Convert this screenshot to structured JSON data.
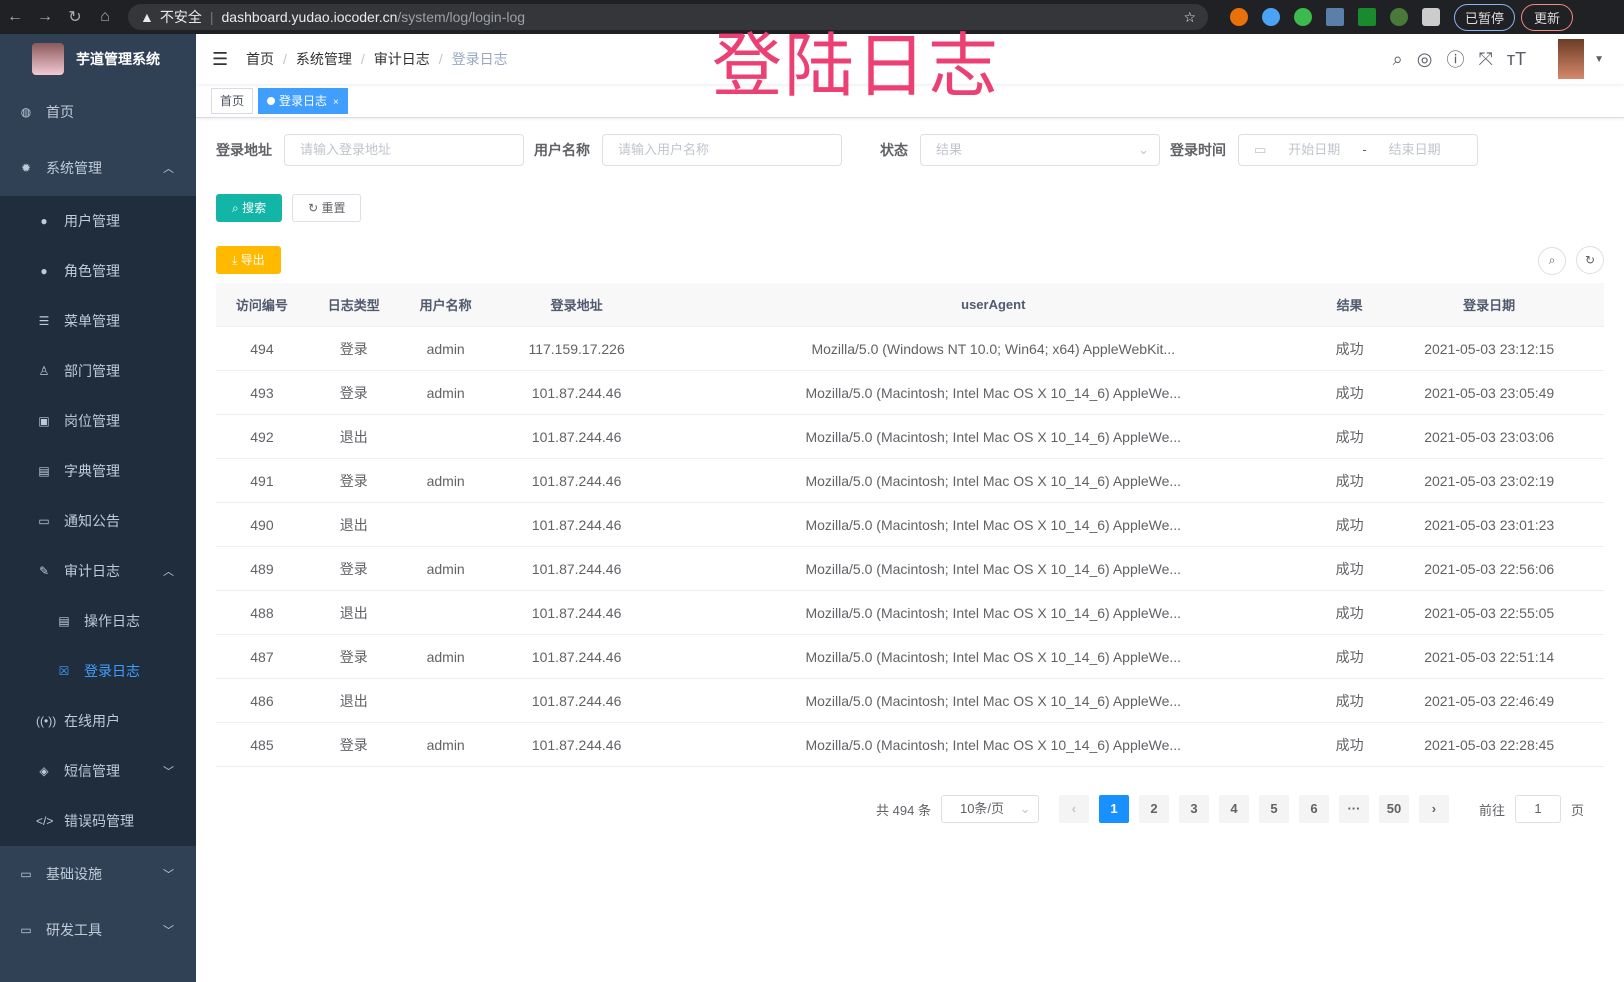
{
  "browser": {
    "security": "不安全",
    "url_host": "dashboard.yudao.iocoder.cn",
    "url_path": "/system/log/login-log",
    "paused": "已暂停",
    "update": "更新"
  },
  "overlay_title": "登陆日志",
  "sidebar": {
    "title": "芋道管理系统",
    "items": [
      {
        "label": "首页",
        "icon": "dashboard-icon"
      },
      {
        "label": "系统管理",
        "icon": "gear-icon",
        "expanded": true,
        "children": [
          {
            "label": "用户管理",
            "icon": "user-icon"
          },
          {
            "label": "角色管理",
            "icon": "peoples-icon"
          },
          {
            "label": "菜单管理",
            "icon": "tree-table-icon"
          },
          {
            "label": "部门管理",
            "icon": "tree-icon"
          },
          {
            "label": "岗位管理",
            "icon": "post-icon"
          },
          {
            "label": "字典管理",
            "icon": "dict-icon"
          },
          {
            "label": "通知公告",
            "icon": "message-icon"
          },
          {
            "label": "审计日志",
            "icon": "log-icon",
            "expanded": true,
            "children": [
              {
                "label": "操作日志",
                "icon": "form-icon"
              },
              {
                "label": "登录日志",
                "icon": "logininfor-icon",
                "active": true
              }
            ]
          },
          {
            "label": "在线用户",
            "icon": "online-icon"
          },
          {
            "label": "短信管理",
            "icon": "validCode-icon"
          },
          {
            "label": "错误码管理",
            "icon": "code-icon"
          }
        ]
      },
      {
        "label": "基础设施",
        "icon": "monitor-icon"
      },
      {
        "label": "研发工具",
        "icon": "tool-icon"
      }
    ]
  },
  "breadcrumb": [
    "首页",
    "系统管理",
    "审计日志",
    "登录日志"
  ],
  "tags": [
    {
      "label": "首页"
    },
    {
      "label": "登录日志",
      "active": true
    }
  ],
  "filters": {
    "address_label": "登录地址",
    "address_placeholder": "请输入登录地址",
    "username_label": "用户名称",
    "username_placeholder": "请输入用户名称",
    "status_label": "状态",
    "status_placeholder": "结果",
    "time_label": "登录时间",
    "start_placeholder": "开始日期",
    "range_sep": "-",
    "end_placeholder": "结束日期"
  },
  "buttons": {
    "search": "搜索",
    "reset": "重置",
    "export": "导出"
  },
  "table": {
    "columns": [
      "访问编号",
      "日志类型",
      "用户名称",
      "登录地址",
      "userAgent",
      "结果",
      "登录日期"
    ],
    "rows": [
      [
        "494",
        "登录",
        "admin",
        "117.159.17.226",
        "Mozilla/5.0 (Windows NT 10.0; Win64; x64) AppleWebKit...",
        "成功",
        "2021-05-03 23:12:15"
      ],
      [
        "493",
        "登录",
        "admin",
        "101.87.244.46",
        "Mozilla/5.0 (Macintosh; Intel Mac OS X 10_14_6) AppleWe...",
        "成功",
        "2021-05-03 23:05:49"
      ],
      [
        "492",
        "退出",
        "",
        "101.87.244.46",
        "Mozilla/5.0 (Macintosh; Intel Mac OS X 10_14_6) AppleWe...",
        "成功",
        "2021-05-03 23:03:06"
      ],
      [
        "491",
        "登录",
        "admin",
        "101.87.244.46",
        "Mozilla/5.0 (Macintosh; Intel Mac OS X 10_14_6) AppleWe...",
        "成功",
        "2021-05-03 23:02:19"
      ],
      [
        "490",
        "退出",
        "",
        "101.87.244.46",
        "Mozilla/5.0 (Macintosh; Intel Mac OS X 10_14_6) AppleWe...",
        "成功",
        "2021-05-03 23:01:23"
      ],
      [
        "489",
        "登录",
        "admin",
        "101.87.244.46",
        "Mozilla/5.0 (Macintosh; Intel Mac OS X 10_14_6) AppleWe...",
        "成功",
        "2021-05-03 22:56:06"
      ],
      [
        "488",
        "退出",
        "",
        "101.87.244.46",
        "Mozilla/5.0 (Macintosh; Intel Mac OS X 10_14_6) AppleWe...",
        "成功",
        "2021-05-03 22:55:05"
      ],
      [
        "487",
        "登录",
        "admin",
        "101.87.244.46",
        "Mozilla/5.0 (Macintosh; Intel Mac OS X 10_14_6) AppleWe...",
        "成功",
        "2021-05-03 22:51:14"
      ],
      [
        "486",
        "退出",
        "",
        "101.87.244.46",
        "Mozilla/5.0 (Macintosh; Intel Mac OS X 10_14_6) AppleWe...",
        "成功",
        "2021-05-03 22:46:49"
      ],
      [
        "485",
        "登录",
        "admin",
        "101.87.244.46",
        "Mozilla/5.0 (Macintosh; Intel Mac OS X 10_14_6) AppleWe...",
        "成功",
        "2021-05-03 22:28:45"
      ]
    ]
  },
  "pagination": {
    "total": "共 494 条",
    "page_size": "10条/页",
    "pages": [
      "1",
      "2",
      "3",
      "4",
      "5",
      "6",
      "···",
      "50"
    ],
    "current": "1",
    "goto_label": "前往",
    "goto_value": "1",
    "goto_unit": "页"
  }
}
